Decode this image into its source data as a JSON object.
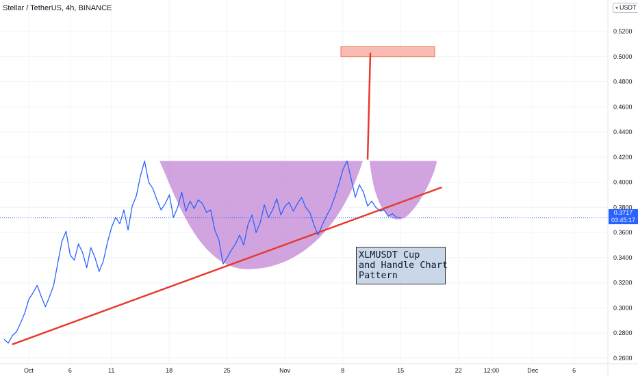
{
  "header": {
    "symbol_title": "Stellar / TetherUS, 4h, BINANCE",
    "currency": "USDT"
  },
  "price_label": {
    "price": "0.3717",
    "countdown": "03:45:17"
  },
  "annotation": {
    "lines": [
      "XLMUSDT Cup",
      "and Handle Chart",
      "Pattern"
    ]
  },
  "corner_label": "",
  "colors": {
    "price_line": "#2962ff",
    "trend_line": "#e8392c",
    "cup_fill": "#c48bd6",
    "target_box": "#f7a59b",
    "target_box_border": "#f0733f",
    "annotation_bg": "#c9d7e8",
    "price_label_bg": "#2962ff"
  },
  "chart_data": {
    "type": "line",
    "title": "Stellar / TetherUS, 4h, BINANCE",
    "ylabel": "USDT",
    "ylim": [
      0.26,
      0.535
    ],
    "y_ticks": [
      "0.5200",
      "0.5000",
      "0.4800",
      "0.4600",
      "0.4400",
      "0.4200",
      "0.4000",
      "0.3800",
      "0.3600",
      "0.3400",
      "0.3200",
      "0.3000",
      "0.2800",
      "0.2600"
    ],
    "x_ticks": [
      {
        "label": "Oct",
        "day": 0
      },
      {
        "label": "6",
        "day": 5
      },
      {
        "label": "11",
        "day": 10
      },
      {
        "label": "18",
        "day": 17
      },
      {
        "label": "25",
        "day": 24
      },
      {
        "label": "Nov",
        "day": 31
      },
      {
        "label": "8",
        "day": 38
      },
      {
        "label": "15",
        "day": 45
      },
      {
        "label": "22",
        "day": 52
      },
      {
        "label": "12:00",
        "day": 56
      },
      {
        "label": "Dec",
        "day": 61
      },
      {
        "label": "6",
        "day": 66
      }
    ],
    "grid": true,
    "series": [
      {
        "x": [
          -3.0,
          -2.5,
          -2.0,
          -1.5,
          -1.0,
          -0.5,
          0.0,
          0.5,
          1.0,
          1.5,
          2.0,
          2.5,
          3.0,
          3.5,
          4.0,
          4.5,
          5.0,
          5.5,
          6.0,
          6.5,
          7.0,
          7.5,
          8.0,
          8.5,
          9.0,
          9.5,
          10.0,
          10.5,
          11.0,
          11.5,
          12.0,
          12.5,
          13.0,
          13.5,
          14.0,
          14.5,
          15.0,
          15.5,
          16.0,
          16.5,
          17.0,
          17.5,
          18.0,
          18.5,
          19.0,
          19.5,
          20.0,
          20.5,
          21.0,
          21.5,
          22.0,
          22.5,
          23.0,
          23.5,
          24.0,
          24.5,
          25.0,
          25.5,
          26.0,
          26.5,
          27.0,
          27.5,
          28.0,
          28.5,
          29.0,
          29.5,
          30.0,
          30.5,
          31.0,
          31.5,
          32.0,
          32.5,
          33.0,
          33.5,
          34.0,
          34.5,
          35.0,
          35.5,
          36.0,
          36.5,
          37.0,
          37.5,
          38.0,
          38.5,
          39.0,
          39.5,
          40.0,
          40.5,
          41.0,
          41.5,
          42.0,
          42.5,
          43.0,
          43.5,
          44.0,
          44.5,
          45.0
        ],
        "values": [
          0.275,
          0.272,
          0.278,
          0.281,
          0.288,
          0.296,
          0.307,
          0.312,
          0.318,
          0.309,
          0.301,
          0.309,
          0.318,
          0.336,
          0.353,
          0.361,
          0.342,
          0.338,
          0.351,
          0.344,
          0.332,
          0.348,
          0.34,
          0.329,
          0.337,
          0.352,
          0.364,
          0.372,
          0.367,
          0.378,
          0.362,
          0.381,
          0.389,
          0.405,
          0.417,
          0.4,
          0.395,
          0.386,
          0.378,
          0.383,
          0.39,
          0.372,
          0.38,
          0.392,
          0.377,
          0.385,
          0.379,
          0.386,
          0.383,
          0.376,
          0.378,
          0.362,
          0.354,
          0.335,
          0.34,
          0.346,
          0.351,
          0.358,
          0.35,
          0.366,
          0.374,
          0.36,
          0.368,
          0.382,
          0.372,
          0.378,
          0.387,
          0.374,
          0.381,
          0.384,
          0.377,
          0.383,
          0.388,
          0.38,
          0.376,
          0.366,
          0.358,
          0.366,
          0.373,
          0.379,
          0.388,
          0.398,
          0.41,
          0.417,
          0.403,
          0.388,
          0.398,
          0.392,
          0.381,
          0.385,
          0.38,
          0.377,
          0.378,
          0.373,
          0.375,
          0.372,
          0.3717
        ]
      }
    ],
    "overlays": {
      "trend_line": {
        "x": [
          -2.0,
          50.0
        ],
        "y": [
          0.271,
          0.396
        ]
      },
      "cup": {
        "x": [
          0.0,
          45.5
        ],
        "top_y": 0.417,
        "bottom_y": 0.331
      },
      "target_box": {
        "x": [
          31.0,
          38.5
        ],
        "y": [
          0.5,
          0.508
        ]
      },
      "target_line": {
        "x": 35.5,
        "y": [
          0.418,
          0.503
        ]
      }
    }
  }
}
